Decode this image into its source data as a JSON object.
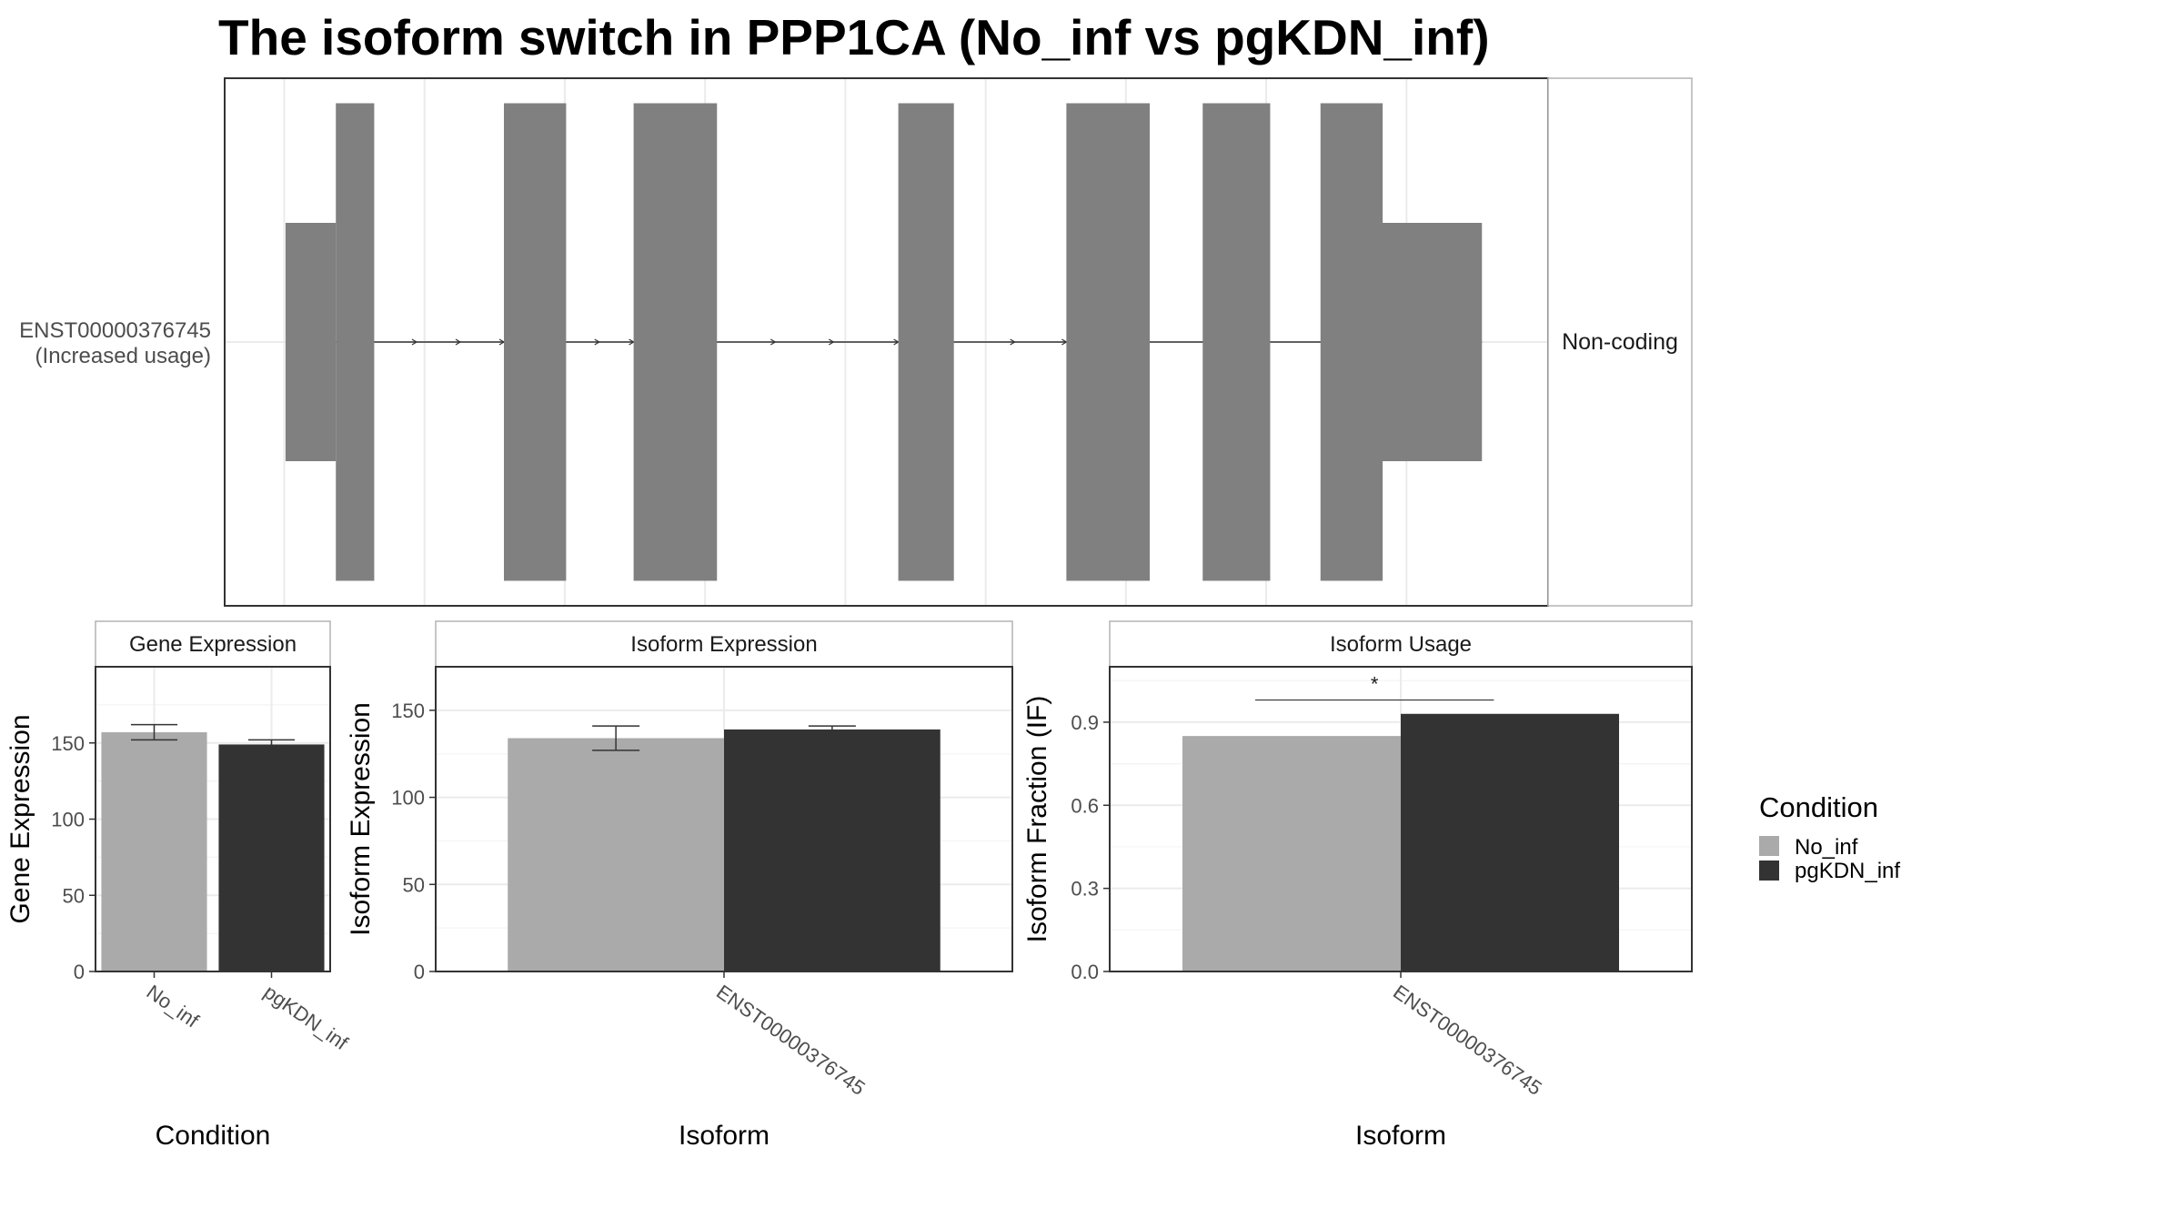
{
  "title": "The isoform switch in PPP1CA (No_inf vs pgKDN_inf)",
  "colors": {
    "No_inf": "#aaaaaa",
    "pgKDN_inf": "#333333",
    "exon": "#808080",
    "intron": "#333333"
  },
  "legend": {
    "title": "Condition",
    "items": [
      "No_inf",
      "pgKDN_inf"
    ]
  },
  "chart_data": [
    {
      "type": "structure",
      "transcript_label": [
        "ENST00000376745",
        "(Increased usage)"
      ],
      "facet_label": "Non-coding",
      "xlim": [
        0,
        100
      ],
      "xgrid": [
        4.5,
        15.1,
        25.7,
        36.3,
        46.9,
        57.5,
        68.1,
        78.7,
        89.3
      ],
      "utr_segments": [
        [
          4.6,
          8.4
        ],
        [
          87.0,
          95.0
        ]
      ],
      "cds_exons": [
        [
          8.4,
          11.3
        ],
        [
          21.1,
          25.8
        ],
        [
          30.9,
          37.2
        ],
        [
          50.9,
          55.1
        ],
        [
          63.6,
          69.9
        ],
        [
          73.9,
          79.0
        ],
        [
          82.8,
          87.5
        ]
      ],
      "intron_arrows": [
        14.5,
        17.8,
        21.1,
        28.3,
        30.9,
        41.6,
        46.0,
        50.9,
        59.7,
        63.6
      ]
    },
    {
      "type": "bar",
      "strip": "Gene Expression",
      "categories": [
        "No_inf",
        "pgKDN_inf"
      ],
      "values": [
        157,
        149
      ],
      "error": [
        [
          152,
          162
        ],
        [
          146,
          152
        ]
      ],
      "ylim": [
        0,
        200
      ],
      "yticks": [
        0,
        50,
        100,
        150
      ],
      "xlabel": "Condition",
      "ylabel": "Gene Expression"
    },
    {
      "type": "bar",
      "strip": "Isoform Expression",
      "categories": [
        "ENST00000376745"
      ],
      "series": [
        {
          "name": "No_inf",
          "values": [
            134
          ],
          "error": [
            [
              127,
              141
            ]
          ]
        },
        {
          "name": "pgKDN_inf",
          "values": [
            139
          ],
          "error": [
            [
              137,
              141
            ]
          ]
        }
      ],
      "ylim": [
        0,
        175
      ],
      "yticks": [
        0,
        50,
        100,
        150
      ],
      "xlabel": "Isoform",
      "ylabel": "Isoform Expression"
    },
    {
      "type": "bar",
      "strip": "Isoform Usage",
      "categories": [
        "ENST00000376745"
      ],
      "series": [
        {
          "name": "No_inf",
          "values": [
            0.85
          ]
        },
        {
          "name": "pgKDN_inf",
          "values": [
            0.93
          ]
        }
      ],
      "ylim": [
        0,
        1.1
      ],
      "yticks": [
        0.0,
        0.3,
        0.6,
        0.9
      ],
      "ytick_labels": [
        "0.0",
        "0.3",
        "0.6",
        "0.9"
      ],
      "significance": {
        "label": "*",
        "y": 0.98
      },
      "xlabel": "Isoform",
      "ylabel": "Isoform Fraction (IF)"
    }
  ]
}
